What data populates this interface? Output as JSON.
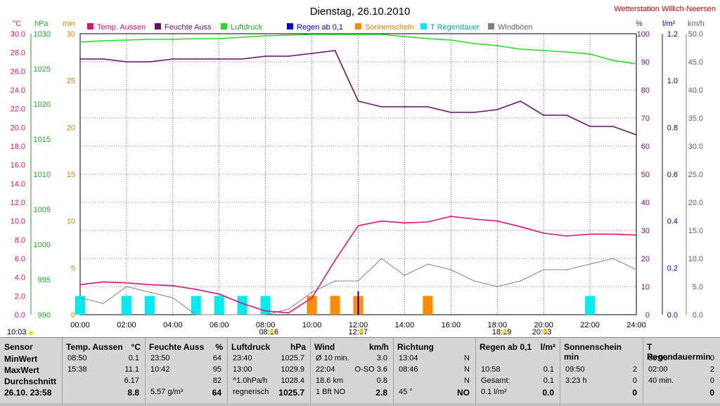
{
  "title": "Dienstag, 26.10.2010",
  "station": "Wetterstation Willich-Neersen",
  "axes": {
    "temp_unit": "°C",
    "pressure_unit": "hPa",
    "min_unit": "min",
    "humidity_unit": "%",
    "rain_unit": "l/m²",
    "wind_unit": "km/h",
    "temp_ticks": [
      "30.0",
      "28.0",
      "26.0",
      "24.0",
      "22.0",
      "20.0",
      "18.0",
      "16.0",
      "14.0",
      "12.0",
      "10.0",
      "8.0",
      "6.0",
      "4.0",
      "2.0",
      "0.0"
    ],
    "pressure_ticks": [
      "1030",
      "1025",
      "1020",
      "1015",
      "1010",
      "1005",
      "1000",
      "995",
      "990"
    ],
    "min_ticks": [
      "30",
      "25",
      "20",
      "15",
      "10",
      "5",
      "0"
    ],
    "humidity_ticks": [
      "100",
      "90",
      "80",
      "70",
      "60",
      "50",
      "40",
      "30",
      "20",
      "10",
      "0"
    ],
    "rain_ticks": [
      "1.2",
      "1.0",
      "0.8",
      "0.6",
      "0.4",
      "0.2",
      "0.0"
    ],
    "wind_ticks": [
      "50.0",
      "45.0",
      "40.0",
      "35.0",
      "30.0",
      "25.0",
      "20.0",
      "15.0",
      "10.0",
      "5.0",
      "0.0"
    ],
    "x_ticks": [
      "00:00",
      "02:00",
      "04:00",
      "06:00",
      "08:00",
      "10:00",
      "12:00",
      "14:00",
      "16:00",
      "18:00",
      "20:00",
      "22:00",
      "24:00"
    ],
    "markers": [
      "10:03",
      "08:16",
      "12:07",
      "18:19",
      "20:03"
    ]
  },
  "colors": {
    "temp": "#e0107a",
    "humidity": "#6a0f6e",
    "pressure": "#22dd22",
    "rain": "#0000ee",
    "sun": "#ff8c00",
    "rainduration": "#00ecf0",
    "wind": "#808080"
  },
  "chart_data": {
    "type": "line",
    "title": "Dienstag, 26.10.2010",
    "x": [
      "00:00",
      "01:00",
      "02:00",
      "03:00",
      "04:00",
      "05:00",
      "06:00",
      "07:00",
      "08:00",
      "09:00",
      "10:00",
      "11:00",
      "12:00",
      "13:00",
      "14:00",
      "15:00",
      "16:00",
      "17:00",
      "18:00",
      "19:00",
      "20:00",
      "21:00",
      "22:00",
      "23:00",
      "24:00"
    ],
    "series": [
      {
        "name": "Temp. Aussen",
        "unit": "°C",
        "values": [
          3.2,
          3.5,
          3.4,
          3.2,
          3.1,
          2.7,
          2.2,
          1.2,
          0.4,
          0.2,
          1.8,
          5.8,
          9.5,
          10.0,
          9.8,
          9.9,
          10.5,
          10.2,
          10.0,
          9.4,
          8.7,
          8.4,
          8.6,
          8.6,
          8.5
        ]
      },
      {
        "name": "Feuchte Auss",
        "unit": "%",
        "values": [
          91,
          91,
          90,
          90,
          91,
          91,
          91,
          91,
          92,
          92,
          93,
          94,
          76,
          74,
          74,
          74,
          72,
          72,
          73,
          76,
          71,
          71,
          67,
          67,
          64
        ]
      },
      {
        "name": "Luftdruck",
        "unit": "hPa",
        "values": [
          1028.8,
          1029.0,
          1029.1,
          1029.2,
          1029.2,
          1029.3,
          1029.3,
          1029.5,
          1029.7,
          1029.8,
          1029.9,
          1029.9,
          1029.9,
          1029.9,
          1029.6,
          1029.3,
          1029.1,
          1028.6,
          1028.3,
          1027.8,
          1027.6,
          1027.4,
          1027.1,
          1026.2,
          1025.7
        ]
      },
      {
        "name": "Regen ab 0,1",
        "unit": "l/m²",
        "values": [
          0,
          0,
          0,
          0,
          0,
          0,
          0,
          0,
          0,
          0,
          0,
          0,
          0.1,
          0,
          0,
          0,
          0,
          0,
          0,
          0,
          0,
          0,
          0,
          0,
          0
        ]
      },
      {
        "name": "Sonnenschein",
        "unit": "min",
        "values": [
          0,
          0,
          0,
          0,
          0,
          0,
          0,
          0,
          0,
          0,
          2,
          2,
          2,
          0,
          0,
          2,
          0,
          0,
          0,
          0,
          0,
          0,
          0,
          0,
          0
        ]
      },
      {
        "name": "T Regendauer",
        "unit": "min",
        "values": [
          2,
          0,
          2,
          2,
          0,
          2,
          2,
          2,
          2,
          0,
          2,
          0,
          0,
          0,
          0,
          0,
          0,
          0,
          0,
          0,
          0,
          0,
          2,
          0,
          0
        ]
      },
      {
        "name": "Windböen",
        "unit": "km/h",
        "values": [
          3,
          2,
          5,
          4,
          3,
          0,
          0,
          0,
          0,
          1,
          4,
          6,
          6,
          10,
          7,
          9,
          8,
          6,
          5,
          6,
          8,
          8,
          9,
          10,
          8
        ]
      }
    ],
    "ylim": {
      "temp": [
        0,
        30
      ],
      "pressure": [
        990,
        1030
      ],
      "min": [
        0,
        30
      ],
      "humidity": [
        0,
        100
      ],
      "rain": [
        0,
        1.2
      ],
      "wind": [
        0,
        50
      ]
    },
    "grid": true,
    "legend": "top"
  },
  "table": {
    "sensor": {
      "header": "Sensor",
      "rows": [
        "MinWert",
        "MaxWert",
        "Durchschnitt",
        "26.10. 23:58"
      ]
    },
    "temp": {
      "header": "Temp. Aussen",
      "unit": "°C",
      "rows": [
        [
          "08:50",
          "0.1"
        ],
        [
          "15:38",
          "11.1"
        ],
        [
          "",
          "6.17"
        ],
        [
          "",
          "8.8"
        ]
      ]
    },
    "hum": {
      "header": "Feuchte Auss",
      "unit": "%",
      "rows": [
        [
          "23:50",
          "64"
        ],
        [
          "10:42",
          "95"
        ],
        [
          "",
          "82"
        ],
        [
          "5.57 g/m³",
          "64"
        ]
      ]
    },
    "press": {
      "header": "Luftdruck",
      "unit": "hPa",
      "rows": [
        [
          "23:40",
          "1025.7"
        ],
        [
          "13:00",
          "1029.9"
        ],
        [
          "^1.0hPa/h",
          "1028.4"
        ],
        [
          "regnerisch",
          "1025.7"
        ]
      ]
    },
    "wind": {
      "header": "Wind",
      "unit": "km/h",
      "rows": [
        [
          "Ø 10 min.",
          "3.0"
        ],
        [
          "22:04",
          "O-SO 3.6"
        ],
        [
          "18.6 km",
          "0.8"
        ],
        [
          "1 Bft NO",
          "2.8"
        ]
      ]
    },
    "dir": {
      "header": "Richtung",
      "rows": [
        [
          "13:04",
          "N"
        ],
        [
          "08:46",
          "N"
        ],
        [
          "",
          "N"
        ],
        [
          "45 °",
          "NO"
        ]
      ]
    },
    "rain": {
      "header": "Regen ab 0,1",
      "unit": "l/m²",
      "rows": [
        [
          "",
          ""
        ],
        [
          "10:58",
          "0.1"
        ],
        [
          "Gesamt:",
          "0.1"
        ],
        [
          "0.1 l/m²",
          "0.0"
        ]
      ]
    },
    "sun": {
      "header": "Sonnenschein min",
      "rows": [
        [
          "",
          ""
        ],
        [
          "09:50",
          "2"
        ],
        [
          "3:23 h",
          "0"
        ],
        [
          "",
          "0"
        ]
      ]
    },
    "rdur": {
      "header": "T Regendauermin",
      "rows": [
        [
          "00:00",
          "0"
        ],
        [
          "02:00",
          "2"
        ],
        [
          "40 min.",
          "0"
        ],
        [
          "",
          "0"
        ]
      ]
    }
  }
}
